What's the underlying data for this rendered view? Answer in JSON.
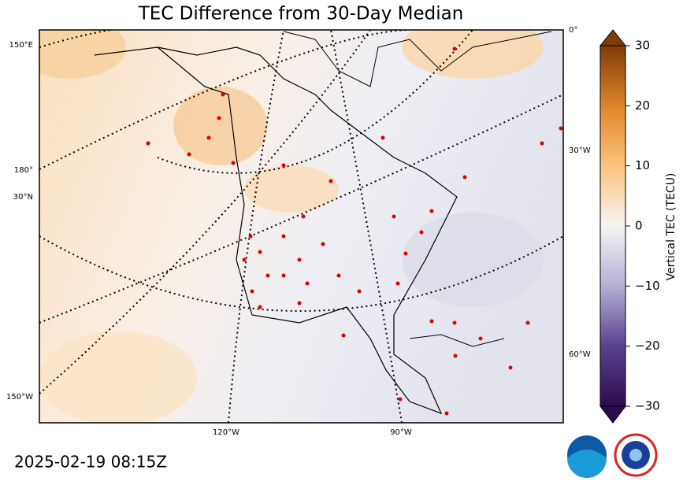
{
  "title": "TEC Difference from 30-Day Median",
  "timestamp": "2025-02-19 08:15Z",
  "colorbar": {
    "label": "Vertical TEC (TECU)",
    "range": [
      -30,
      30
    ],
    "ticks": [
      30,
      20,
      10,
      0,
      {
        "value": -10,
        "label": "−10"
      },
      {
        "value": -20,
        "label": "−20"
      },
      {
        "value": -30,
        "label": "−30"
      }
    ]
  },
  "graticule_labels": [
    "150°E",
    "180°",
    "30°N",
    "150°W",
    "120°W",
    "90°W",
    "0°",
    "30°W",
    "60°W"
  ]
}
